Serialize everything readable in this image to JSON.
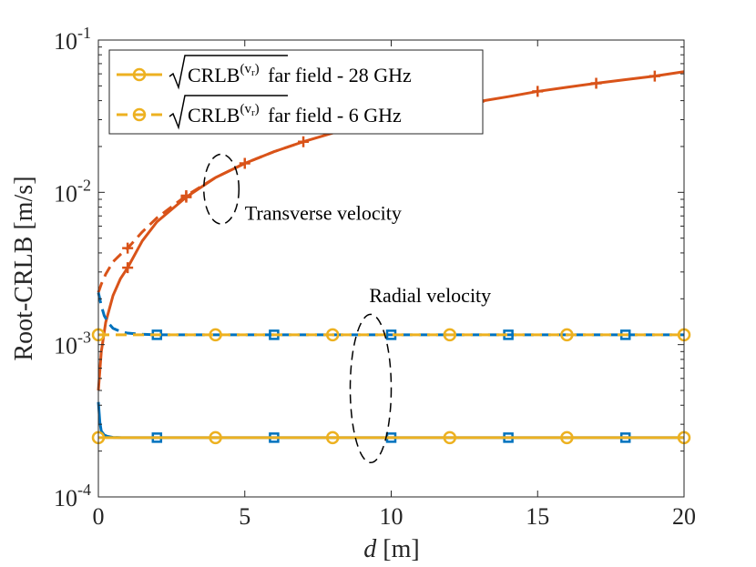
{
  "chart_data": {
    "type": "line",
    "xlabel_italic": "d",
    "xlabel_unit": "[m]",
    "ylabel": "Root-CRLB [m/s]",
    "xlim": [
      0,
      20
    ],
    "ylim": [
      0.0001,
      0.1
    ],
    "y_scale": "log",
    "x_ticks": [
      0,
      5,
      10,
      15,
      20
    ],
    "x_tick_labels": [
      "0",
      "5",
      "10",
      "15",
      "20"
    ],
    "y_ticks": [
      0.0001,
      0.001,
      0.01,
      0.1
    ],
    "y_tick_labels": [
      {
        "base": "10",
        "exp": "-4"
      },
      {
        "base": "10",
        "exp": "-3"
      },
      {
        "base": "10",
        "exp": "-2"
      },
      {
        "base": "10",
        "exp": "-1"
      }
    ],
    "grid": false,
    "legend_position": "top-left",
    "legend": [
      {
        "label": "√CRLB(vr) far field - 28 GHz",
        "prefix": "CRLB",
        "sup": "(v",
        "sub": "r",
        "sup_close": ")",
        "suffix": " far field - 28 GHz",
        "color": "#EDB120",
        "dash": "solid",
        "marker": "circle"
      },
      {
        "label": "√CRLB(vr) far field - 6 GHz",
        "prefix": "CRLB",
        "sup": "(v",
        "sub": "r",
        "sup_close": ")",
        "suffix": " far field - 6 GHz",
        "color": "#EDB120",
        "dash": "dashed",
        "marker": "circle"
      }
    ],
    "annotations": [
      {
        "text": "Transverse velocity",
        "x": 5,
        "y": 0.0066
      },
      {
        "text": "Radial velocity",
        "x": 9.25,
        "y": 0.0019
      }
    ],
    "ellipses": [
      {
        "cx": 4.2,
        "cy": 0.0104,
        "rx_data": 0.6,
        "y_top": 0.0178,
        "y_bottom": 0.0062
      },
      {
        "cx": 9.3,
        "cy": 0.00052,
        "rx_data": 0.7,
        "y_top": 0.00158,
        "y_bottom": 0.000168
      }
    ],
    "series": [
      {
        "color": "#D95319",
        "dash": "solid",
        "marker": "plus",
        "x": [
          0,
          0.1,
          0.25,
          0.5,
          0.75,
          1,
          1.5,
          2,
          3,
          4,
          5,
          6,
          7,
          8,
          9,
          10,
          11,
          12,
          13,
          14,
          15,
          16,
          17,
          18,
          19,
          20
        ],
        "y": [
          0.0005,
          0.0009,
          0.0014,
          0.0021,
          0.0027,
          0.0032,
          0.0048,
          0.0064,
          0.0093,
          0.0125,
          0.0155,
          0.0185,
          0.0215,
          0.0245,
          0.0275,
          0.0305,
          0.0335,
          0.0365,
          0.0395,
          0.0425,
          0.046,
          0.049,
          0.052,
          0.055,
          0.058,
          0.062
        ],
        "marker_x": [
          1,
          3,
          5,
          7,
          9,
          11,
          13,
          15,
          17,
          19
        ]
      },
      {
        "color": "#D95319",
        "dash": "dashed",
        "marker": "plus",
        "x": [
          0,
          0.1,
          0.25,
          0.5,
          0.75,
          1,
          1.5,
          2,
          3,
          4,
          5,
          6,
          7
        ],
        "y": [
          0.0022,
          0.0025,
          0.0029,
          0.0035,
          0.0039,
          0.0043,
          0.0055,
          0.0068,
          0.0095,
          0.0125,
          0.0155,
          0.0185,
          0.0215
        ],
        "marker_x": [
          1,
          3
        ]
      },
      {
        "color": "#0072BD",
        "dash": "solid",
        "marker": "square",
        "x": [
          0,
          0.05,
          0.1,
          0.2,
          0.3,
          0.5,
          0.8,
          1,
          2,
          4,
          6,
          8,
          10,
          12,
          14,
          16,
          18,
          20
        ],
        "y": [
          0.00042,
          0.00031,
          0.00027,
          0.000255,
          0.00025,
          0.000246,
          0.000245,
          0.000245,
          0.000245,
          0.000245,
          0.000245,
          0.000245,
          0.000245,
          0.000245,
          0.000245,
          0.000245,
          0.000245,
          0.000245
        ],
        "marker_x": [
          2,
          6,
          10,
          14,
          18
        ]
      },
      {
        "color": "#0072BD",
        "dash": "dashed",
        "marker": "square",
        "x": [
          0,
          0.1,
          0.2,
          0.35,
          0.5,
          0.75,
          1,
          1.5,
          2,
          4,
          6,
          8,
          10,
          12,
          14,
          16,
          18,
          20
        ],
        "y": [
          0.0022,
          0.0018,
          0.00155,
          0.00138,
          0.00128,
          0.00122,
          0.00119,
          0.00117,
          0.00116,
          0.00116,
          0.00116,
          0.00116,
          0.00116,
          0.00116,
          0.00116,
          0.00116,
          0.00116,
          0.00116
        ],
        "marker_x": [
          2,
          6,
          10,
          14,
          18
        ]
      },
      {
        "color": "#EDB120",
        "dash": "solid",
        "marker": "circle",
        "x": [
          0,
          20
        ],
        "y": [
          0.000245,
          0.000245
        ],
        "marker_x": [
          0,
          4,
          8,
          12,
          16,
          20
        ]
      },
      {
        "color": "#EDB120",
        "dash": "dashed",
        "marker": "circle",
        "x": [
          0,
          20
        ],
        "y": [
          0.00116,
          0.00116
        ],
        "marker_x": [
          0,
          4,
          8,
          12,
          16,
          20
        ]
      }
    ]
  }
}
